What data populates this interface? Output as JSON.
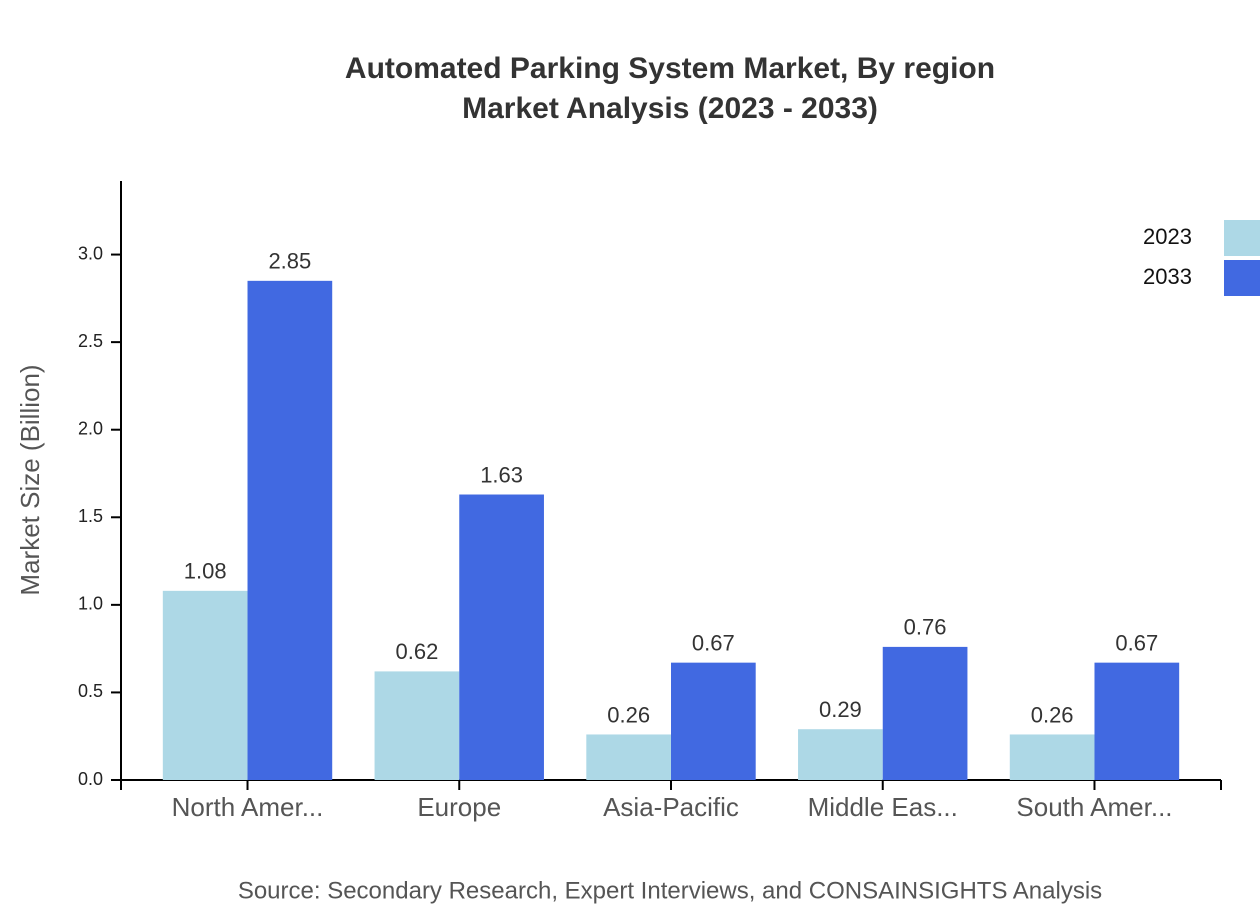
{
  "chart_data": {
    "type": "bar",
    "title": "Automated Parking System Market, By region",
    "subtitle": "Market Analysis (2023 - 2033)",
    "y_label": "Market Size (Billion)",
    "source": "Source: Secondary Research, Expert Interviews, and CONSAINSIGHTS Analysis",
    "categories": [
      "North Amer...",
      "Europe",
      "Asia-Pacific",
      "Middle Eas...",
      "South Amer..."
    ],
    "series": [
      {
        "name": "2023",
        "color": "#add8e6",
        "values": [
          1.08,
          0.62,
          0.26,
          0.29,
          0.26
        ]
      },
      {
        "name": "2033",
        "color": "#4169e1",
        "values": [
          2.85,
          1.63,
          0.67,
          0.76,
          0.67
        ]
      }
    ],
    "ylim": [
      0,
      3.42
    ],
    "yticks": [
      {
        "value": 0,
        "label": "0.0"
      },
      0.5,
      {
        "value": 1,
        "label": "1.0"
      },
      1.5,
      {
        "value": 2,
        "label": "2.0"
      },
      2.5,
      {
        "value": 3,
        "label": "3.0"
      }
    ],
    "legend": "top-right",
    "grid": false
  }
}
